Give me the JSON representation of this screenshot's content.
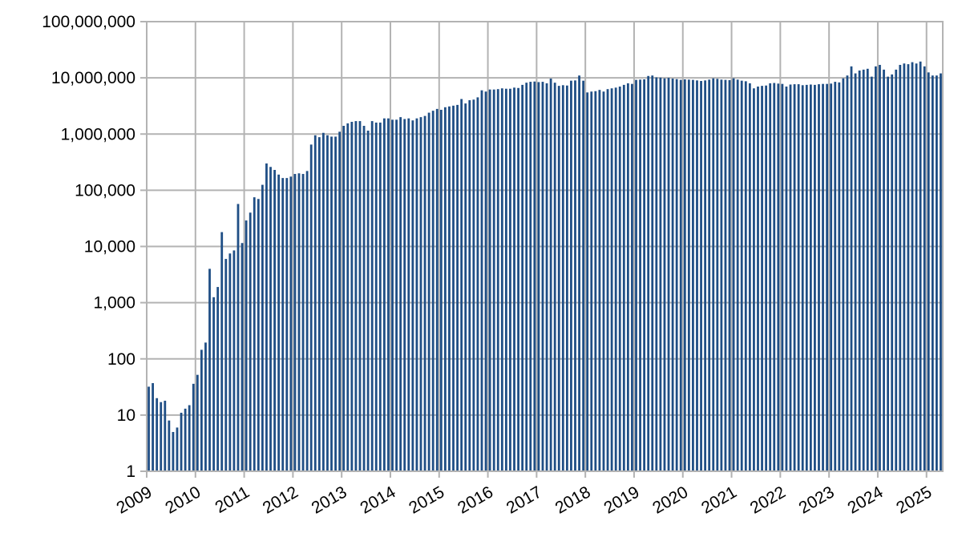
{
  "chart_data": {
    "type": "bar",
    "title": "",
    "xlabel": "",
    "ylabel": "",
    "yscale": "log",
    "ylim": [
      1,
      100000000
    ],
    "x_start": "2009-01",
    "x_end": "2025-03",
    "grid": true,
    "legend": "none",
    "colors": {
      "bar": "#1f4e85",
      "grid": "#b3b3b3",
      "axis": "#b3b3b3",
      "text": "#000000"
    },
    "y_ticks": [
      {
        "value": 1,
        "label": "1"
      },
      {
        "value": 10,
        "label": "10"
      },
      {
        "value": 100,
        "label": "100"
      },
      {
        "value": 1000,
        "label": "1,000"
      },
      {
        "value": 10000,
        "label": "10,000"
      },
      {
        "value": 100000,
        "label": "100,000"
      },
      {
        "value": 1000000,
        "label": "1,000,000"
      },
      {
        "value": 10000000,
        "label": "10,000,000"
      },
      {
        "value": 100000000,
        "label": "100,000,000"
      }
    ],
    "x_ticks": [
      "2009",
      "2010",
      "2011",
      "2012",
      "2013",
      "2014",
      "2015",
      "2016",
      "2017",
      "2018",
      "2019",
      "2020",
      "2021",
      "2022",
      "2023",
      "2024",
      "2025"
    ],
    "series": [
      {
        "values": [
          32,
          37,
          20,
          17,
          18,
          8,
          5,
          6,
          11,
          13,
          15,
          36,
          52,
          145,
          195,
          4000,
          1250,
          1900,
          18000,
          6000,
          7500,
          8500,
          57000,
          11500,
          29000,
          40000,
          75000,
          70000,
          125000,
          300000,
          260000,
          230000,
          190000,
          165000,
          165000,
          175000,
          195000,
          200000,
          195000,
          220000,
          650000,
          950000,
          880000,
          1050000,
          950000,
          900000,
          900000,
          1100000,
          1400000,
          1550000,
          1650000,
          1700000,
          1700000,
          1400000,
          1150000,
          1700000,
          1600000,
          1600000,
          1900000,
          1900000,
          1800000,
          1800000,
          2000000,
          1850000,
          1900000,
          1750000,
          1900000,
          2000000,
          2100000,
          2400000,
          2600000,
          2800000,
          2700000,
          3000000,
          3100000,
          3200000,
          3300000,
          4200000,
          3500000,
          4000000,
          4100000,
          4500000,
          6000000,
          5700000,
          6200000,
          6200000,
          6300000,
          6500000,
          6400000,
          6400000,
          6700000,
          6600000,
          7500000,
          8200000,
          8500000,
          8600000,
          8400000,
          8500000,
          8000000,
          9700000,
          8200000,
          7200000,
          7400000,
          7300000,
          8900000,
          9000000,
          11000000,
          8900000,
          5500000,
          5700000,
          5800000,
          6100000,
          5700000,
          6300000,
          6500000,
          6700000,
          7000000,
          7500000,
          8000000,
          7800000,
          9200000,
          9300000,
          9400000,
          10800000,
          11000000,
          10200000,
          10100000,
          9800000,
          10000000,
          9700000,
          9500000,
          9200000,
          9400000,
          9300000,
          9200000,
          9000000,
          8800000,
          9000000,
          9300000,
          9800000,
          9600000,
          9300000,
          9200000,
          9100000,
          9800000,
          9300000,
          8900000,
          8700000,
          8000000,
          6500000,
          7000000,
          7200000,
          7300000,
          8000000,
          8100000,
          7900000,
          7800000,
          7000000,
          7600000,
          7700000,
          7700000,
          7400000,
          7500000,
          7600000,
          7500000,
          7700000,
          7800000,
          7800000,
          7900000,
          8500000,
          8300000,
          9800000,
          11000000,
          16000000,
          12000000,
          13500000,
          14000000,
          14500000,
          10500000,
          16000000,
          17000000,
          14000000,
          10500000,
          11500000,
          14000000,
          17000000,
          18000000,
          17500000,
          19000000,
          18000000,
          19500000,
          16000000,
          12500000,
          11000000,
          11000000,
          12000000
        ]
      }
    ]
  }
}
